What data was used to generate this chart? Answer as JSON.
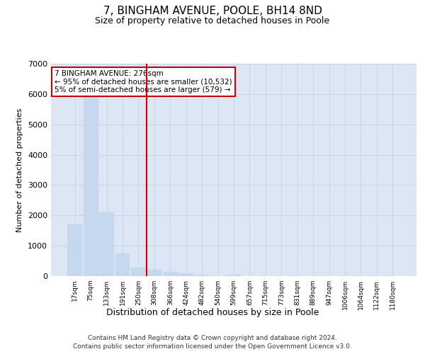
{
  "title": "7, BINGHAM AVENUE, POOLE, BH14 8ND",
  "subtitle": "Size of property relative to detached houses in Poole",
  "xlabel": "Distribution of detached houses by size in Poole",
  "ylabel": "Number of detached properties",
  "bar_color": "#c5d8ee",
  "bar_edge_color": "#c5d8ee",
  "grid_color": "#c8d4e8",
  "background_color": "#dce6f5",
  "vline_color": "#cc0000",
  "vline_x": 4.5,
  "annotation_box_color": "#cc0000",
  "annotation_text": "7 BINGHAM AVENUE: 276sqm\n← 95% of detached houses are smaller (10,532)\n5% of semi-detached houses are larger (579) →",
  "categories": [
    "17sqm",
    "75sqm",
    "133sqm",
    "191sqm",
    "250sqm",
    "308sqm",
    "366sqm",
    "424sqm",
    "482sqm",
    "540sqm",
    "599sqm",
    "657sqm",
    "715sqm",
    "773sqm",
    "831sqm",
    "889sqm",
    "947sqm",
    "1006sqm",
    "1064sqm",
    "1122sqm",
    "1180sqm"
  ],
  "bar_heights": [
    1700,
    5900,
    2100,
    750,
    280,
    200,
    130,
    105,
    55,
    0,
    55,
    0,
    0,
    0,
    0,
    0,
    0,
    0,
    0,
    0,
    0
  ],
  "ylim": [
    0,
    7000
  ],
  "yticks": [
    0,
    1000,
    2000,
    3000,
    4000,
    5000,
    6000,
    7000
  ],
  "figsize": [
    6.0,
    5.0
  ],
  "dpi": 100,
  "footnote1": "Contains HM Land Registry data © Crown copyright and database right 2024.",
  "footnote2": "Contains public sector information licensed under the Open Government Licence v3.0."
}
